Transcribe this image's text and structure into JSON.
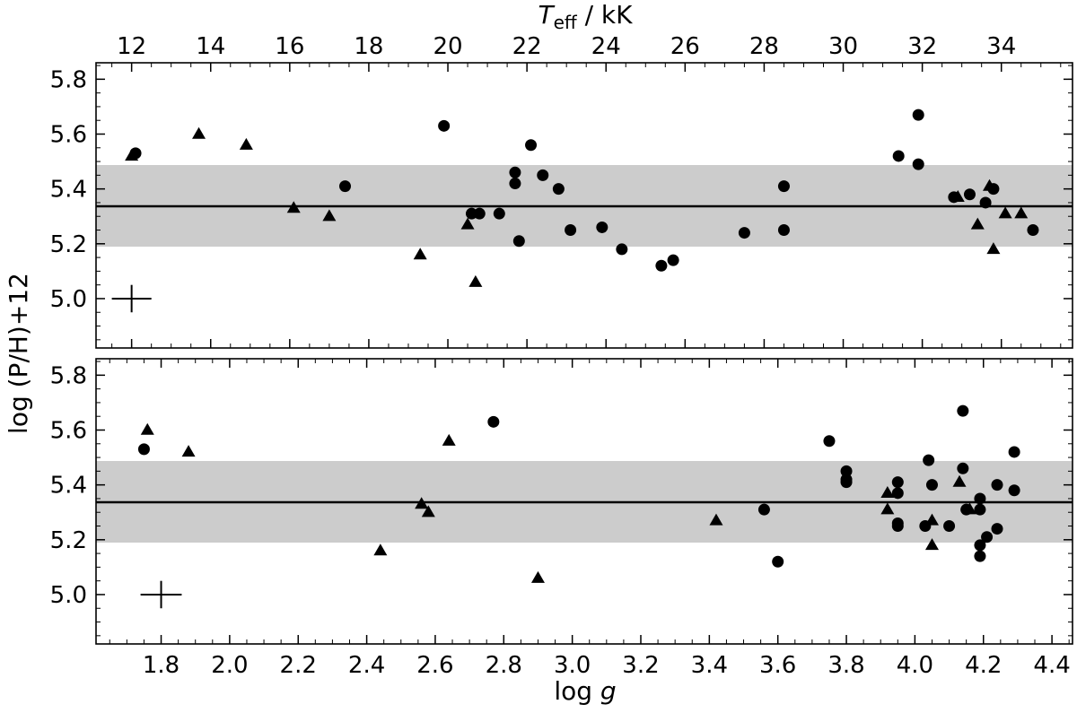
{
  "chart_data": [
    {
      "type": "scatter",
      "panel": "top",
      "xlabel_top": "T",
      "xlabel_top_sub": "eff",
      "xlabel_top_unit": " / kK",
      "ylabel": "log (P/H)+12",
      "xlim": [
        11.1,
        35.8
      ],
      "ylim": [
        4.82,
        5.86
      ],
      "xticks": [
        12,
        14,
        16,
        18,
        20,
        22,
        24,
        26,
        28,
        30,
        32,
        34
      ],
      "yticks": [
        5.0,
        5.2,
        5.4,
        5.6,
        5.8
      ],
      "tick_labels_x": [
        "12",
        "14",
        "16",
        "18",
        "20",
        "22",
        "24",
        "26",
        "28",
        "30",
        "32",
        "34"
      ],
      "tick_labels_y": [
        "5.0",
        "5.2",
        "5.4",
        "5.6",
        "5.8"
      ],
      "mean_line": 5.355,
      "band": [
        5.21,
        5.5
      ],
      "band_color": "#cccccc",
      "error_cross": {
        "x": 12.0,
        "y": 5.0,
        "dx": 0.5,
        "dy": 0.05
      },
      "series": [
        {
          "marker": "circle",
          "points": [
            [
              12.1,
              5.53
            ],
            [
              19.9,
              5.63
            ],
            [
              22.1,
              5.56
            ],
            [
              17.4,
              5.41
            ],
            [
              20.6,
              5.31
            ],
            [
              20.8,
              5.31
            ],
            [
              21.3,
              5.31
            ],
            [
              21.7,
              5.46
            ],
            [
              21.7,
              5.42
            ],
            [
              21.8,
              5.21
            ],
            [
              22.4,
              5.45
            ],
            [
              22.8,
              5.4
            ],
            [
              23.1,
              5.25
            ],
            [
              23.9,
              5.26
            ],
            [
              24.4,
              5.18
            ],
            [
              25.4,
              5.12
            ],
            [
              25.7,
              5.14
            ],
            [
              27.5,
              5.24
            ],
            [
              28.5,
              5.41
            ],
            [
              28.5,
              5.25
            ],
            [
              31.4,
              5.52
            ],
            [
              31.9,
              5.67
            ],
            [
              31.9,
              5.49
            ],
            [
              32.8,
              5.37
            ],
            [
              33.2,
              5.38
            ],
            [
              33.6,
              5.35
            ],
            [
              33.8,
              5.4
            ],
            [
              34.8,
              5.25
            ]
          ]
        },
        {
          "marker": "triangle",
          "points": [
            [
              12.0,
              5.52
            ],
            [
              13.7,
              5.6
            ],
            [
              14.9,
              5.56
            ],
            [
              16.1,
              5.33
            ],
            [
              17.0,
              5.3
            ],
            [
              19.3,
              5.16
            ],
            [
              20.5,
              5.27
            ],
            [
              20.7,
              5.06
            ],
            [
              32.9,
              5.37
            ],
            [
              33.4,
              5.27
            ],
            [
              33.7,
              5.41
            ],
            [
              33.8,
              5.18
            ],
            [
              34.1,
              5.31
            ],
            [
              34.5,
              5.31
            ]
          ]
        }
      ]
    },
    {
      "type": "scatter",
      "panel": "bottom",
      "xlabel": "log",
      "xlabel_italic": "g",
      "ylabel": "log (P/H)+12",
      "xlim": [
        1.61,
        4.46
      ],
      "ylim": [
        4.82,
        5.86
      ],
      "xticks": [
        1.8,
        2.0,
        2.2,
        2.4,
        2.6,
        2.8,
        3.0,
        3.2,
        3.4,
        3.6,
        3.8,
        4.0,
        4.2,
        4.4
      ],
      "yticks": [
        5.0,
        5.2,
        5.4,
        5.6,
        5.8
      ],
      "tick_labels_x": [
        "1.8",
        "2.0",
        "2.2",
        "2.4",
        "2.6",
        "2.8",
        "3.0",
        "3.2",
        "3.4",
        "3.6",
        "3.8",
        "4.0",
        "4.2",
        "4.4"
      ],
      "tick_labels_y": [
        "5.0",
        "5.2",
        "5.4",
        "5.6",
        "5.8"
      ],
      "mean_line": 5.355,
      "band": [
        5.21,
        5.5
      ],
      "band_color": "#cccccc",
      "error_cross": {
        "x": 1.8,
        "y": 5.0,
        "dx": 0.06,
        "dy": 0.05
      },
      "series": [
        {
          "marker": "circle",
          "points": [
            [
              1.75,
              5.53
            ],
            [
              2.77,
              5.63
            ],
            [
              3.56,
              5.31
            ],
            [
              3.6,
              5.12
            ],
            [
              3.75,
              5.56
            ],
            [
              3.8,
              5.45
            ],
            [
              3.8,
              5.42
            ],
            [
              3.8,
              5.41
            ],
            [
              3.95,
              5.41
            ],
            [
              3.95,
              5.37
            ],
            [
              3.95,
              5.26
            ],
            [
              3.95,
              5.25
            ],
            [
              4.03,
              5.25
            ],
            [
              4.04,
              5.49
            ],
            [
              4.05,
              5.4
            ],
            [
              4.1,
              5.25
            ],
            [
              4.14,
              5.67
            ],
            [
              4.14,
              5.46
            ],
            [
              4.15,
              5.31
            ],
            [
              4.19,
              5.35
            ],
            [
              4.19,
              5.31
            ],
            [
              4.19,
              5.18
            ],
            [
              4.19,
              5.14
            ],
            [
              4.21,
              5.21
            ],
            [
              4.24,
              5.4
            ],
            [
              4.24,
              5.24
            ],
            [
              4.29,
              5.52
            ],
            [
              4.29,
              5.38
            ]
          ]
        },
        {
          "marker": "triangle",
          "points": [
            [
              1.76,
              5.6
            ],
            [
              1.88,
              5.52
            ],
            [
              2.44,
              5.16
            ],
            [
              2.56,
              5.33
            ],
            [
              2.58,
              5.3
            ],
            [
              2.64,
              5.56
            ],
            [
              2.9,
              5.06
            ],
            [
              3.42,
              5.27
            ],
            [
              3.92,
              5.37
            ],
            [
              3.92,
              5.31
            ],
            [
              4.05,
              5.27
            ],
            [
              4.05,
              5.18
            ],
            [
              4.13,
              5.41
            ],
            [
              4.16,
              5.31
            ]
          ]
        }
      ]
    }
  ]
}
